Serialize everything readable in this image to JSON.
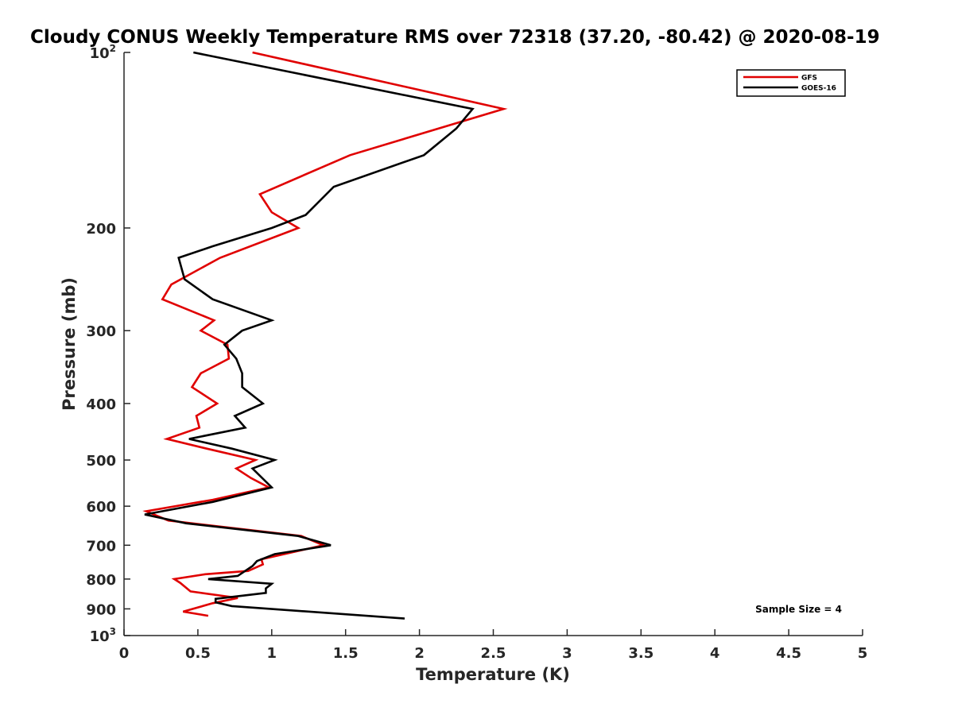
{
  "chart_data": {
    "type": "line",
    "title": "Cloudy CONUS Weekly Temperature RMS over 72318 (37.20, -80.42) @ 2020-08-19",
    "xlabel": "Temperature (K)",
    "ylabel": "Pressure (mb)",
    "xlim": [
      0,
      5
    ],
    "ylim": [
      100,
      1000
    ],
    "yscale": "log",
    "yreversed": true,
    "x_ticks": [
      "0",
      "0.5",
      "1",
      "1.5",
      "2",
      "2.5",
      "3",
      "3.5",
      "4",
      "4.5",
      "5"
    ],
    "y_ticks": [
      {
        "value": 100,
        "base": "10",
        "exp": "2"
      },
      {
        "value": 200,
        "label": "200"
      },
      {
        "value": 300,
        "label": "300"
      },
      {
        "value": 400,
        "label": "400"
      },
      {
        "value": 500,
        "label": "500"
      },
      {
        "value": 600,
        "label": "600"
      },
      {
        "value": 700,
        "label": "700"
      },
      {
        "value": 800,
        "label": "800"
      },
      {
        "value": 900,
        "label": "900"
      },
      {
        "value": 1000,
        "base": "10",
        "exp": "3"
      }
    ],
    "legend_position": "top-right",
    "annotation": "Sample Size = 4",
    "series": [
      {
        "name": "GFS",
        "color": "#e00000",
        "points": [
          [
            0.87,
            100
          ],
          [
            2.57,
            125
          ],
          [
            1.53,
            150
          ],
          [
            0.92,
            175
          ],
          [
            1.0,
            188
          ],
          [
            1.18,
            200
          ],
          [
            0.65,
            225
          ],
          [
            0.32,
            250
          ],
          [
            0.26,
            265
          ],
          [
            0.61,
            288
          ],
          [
            0.52,
            300
          ],
          [
            0.7,
            317
          ],
          [
            0.71,
            335
          ],
          [
            0.52,
            355
          ],
          [
            0.46,
            375
          ],
          [
            0.63,
            400
          ],
          [
            0.49,
            420
          ],
          [
            0.51,
            440
          ],
          [
            0.29,
            460
          ],
          [
            0.56,
            478
          ],
          [
            0.89,
            500
          ],
          [
            0.76,
            517
          ],
          [
            0.86,
            537
          ],
          [
            0.98,
            557
          ],
          [
            0.6,
            585
          ],
          [
            0.15,
            612
          ],
          [
            0.3,
            635
          ],
          [
            1.2,
            675
          ],
          [
            1.35,
            700
          ],
          [
            0.93,
            740
          ],
          [
            0.94,
            755
          ],
          [
            0.84,
            775
          ],
          [
            0.55,
            785
          ],
          [
            0.34,
            800
          ],
          [
            0.38,
            812
          ],
          [
            0.45,
            840
          ],
          [
            0.77,
            862
          ],
          [
            0.6,
            880
          ],
          [
            0.4,
            910
          ],
          [
            0.57,
            925
          ]
        ]
      },
      {
        "name": "GOES-16",
        "color": "#000000",
        "points": [
          [
            0.47,
            100
          ],
          [
            2.36,
            125
          ],
          [
            2.25,
            135
          ],
          [
            2.03,
            150
          ],
          [
            1.42,
            170
          ],
          [
            1.23,
            190
          ],
          [
            1.0,
            200
          ],
          [
            0.6,
            215
          ],
          [
            0.37,
            225
          ],
          [
            0.41,
            245
          ],
          [
            0.6,
            265
          ],
          [
            1.0,
            288
          ],
          [
            0.8,
            300
          ],
          [
            0.68,
            317
          ],
          [
            0.76,
            335
          ],
          [
            0.8,
            355
          ],
          [
            0.8,
            375
          ],
          [
            0.94,
            400
          ],
          [
            0.75,
            420
          ],
          [
            0.82,
            440
          ],
          [
            0.44,
            460
          ],
          [
            0.73,
            478
          ],
          [
            1.02,
            500
          ],
          [
            0.87,
            517
          ],
          [
            1.0,
            557
          ],
          [
            0.6,
            590
          ],
          [
            0.14,
            620
          ],
          [
            0.42,
            642
          ],
          [
            1.18,
            675
          ],
          [
            1.4,
            700
          ],
          [
            1.02,
            725
          ],
          [
            0.9,
            745
          ],
          [
            0.87,
            760
          ],
          [
            0.77,
            790
          ],
          [
            0.57,
            800
          ],
          [
            1.0,
            815
          ],
          [
            0.96,
            830
          ],
          [
            0.96,
            845
          ],
          [
            0.62,
            865
          ],
          [
            0.62,
            877
          ],
          [
            0.73,
            890
          ],
          [
            1.9,
            935
          ]
        ]
      }
    ]
  }
}
